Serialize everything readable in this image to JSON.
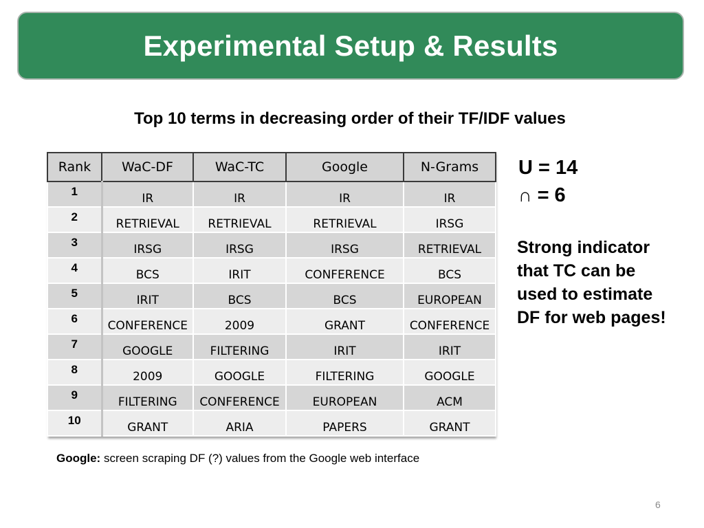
{
  "slide": {
    "title": "Experimental Setup & Results",
    "subtitle": "Top 10 terms in decreasing order of their TF/IDF values",
    "page_number": "6"
  },
  "table": {
    "headers": [
      "Rank",
      "WaC-DF",
      "WaC-TC",
      "Google",
      "N-Grams"
    ],
    "rows": [
      {
        "rank": "1",
        "cells": [
          "IR",
          "IR",
          "IR",
          "IR"
        ]
      },
      {
        "rank": "2",
        "cells": [
          "RETRIEVAL",
          "RETRIEVAL",
          "RETRIEVAL",
          "IRSG"
        ]
      },
      {
        "rank": "3",
        "cells": [
          "IRSG",
          "IRSG",
          "IRSG",
          "RETRIEVAL"
        ]
      },
      {
        "rank": "4",
        "cells": [
          "BCS",
          "IRIT",
          "CONFERENCE",
          "BCS"
        ]
      },
      {
        "rank": "5",
        "cells": [
          "IRIT",
          "BCS",
          "BCS",
          "EUROPEAN"
        ]
      },
      {
        "rank": "6",
        "cells": [
          "CONFERENCE",
          "2009",
          "GRANT",
          "CONFERENCE"
        ]
      },
      {
        "rank": "7",
        "cells": [
          "GOOGLE",
          "FILTERING",
          "IRIT",
          "IRIT"
        ]
      },
      {
        "rank": "8",
        "cells": [
          "2009",
          "GOOGLE",
          "FILTERING",
          "GOOGLE"
        ]
      },
      {
        "rank": "9",
        "cells": [
          "FILTERING",
          "CONFERENCE",
          "EUROPEAN",
          "ACM"
        ]
      },
      {
        "rank": "10",
        "cells": [
          "GRANT",
          "ARIA",
          "PAPERS",
          "GRANT"
        ]
      }
    ]
  },
  "stats": {
    "union_symbol": "U",
    "union_value": "= 14",
    "intersection_symbol": "∩",
    "intersection_value": "= 6"
  },
  "note": {
    "lines": [
      "Strong indicator",
      "that TC can be",
      "used to estimate",
      "DF for web pages!"
    ]
  },
  "footnote": {
    "label": "Google:",
    "text": " screen scraping DF (?) values from the Google web interface"
  },
  "colors": {
    "title_bar": "#318a59",
    "title_text": "#ffffff",
    "header_bg": "#d4d4d4",
    "row_dark": "#d6d6d6",
    "row_light": "#ededed"
  }
}
